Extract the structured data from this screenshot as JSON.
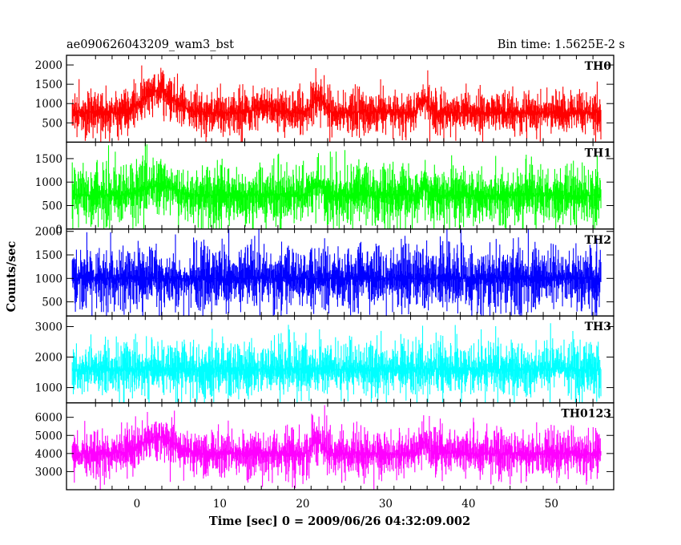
{
  "chart_data": {
    "type": "line",
    "title": "ae090626043209_wam3_bst",
    "subtitle": "Bin time: 1.5625E-2 s",
    "xlabel": "Time [sec] 0 = 2009/06/26 04:32:09.002",
    "ylabel": "Counts/sec",
    "xlim": [
      -8.5,
      57.5
    ],
    "x_ticks": [
      0,
      10,
      20,
      30,
      40,
      50
    ],
    "panels": [
      {
        "name": "TH0",
        "color": "#ff0000",
        "ylim": [
          0,
          2250
        ],
        "yticks": [
          500,
          1000,
          1500,
          2000
        ],
        "x_range": [
          -7.8,
          56
        ],
        "baseline": 770,
        "noise": 260,
        "bursts": [
          {
            "t": 2.5,
            "amp": 560,
            "w": 2.6
          },
          {
            "t": 15.5,
            "amp": 180,
            "w": 1.5
          },
          {
            "t": 21.8,
            "amp": 400,
            "w": 0.9
          },
          {
            "t": 34.6,
            "amp": 380,
            "w": 0.7
          }
        ]
      },
      {
        "name": "TH1",
        "color": "#00ff00",
        "ylim": [
          0,
          1850
        ],
        "yticks": [
          0,
          500,
          1000,
          1500
        ],
        "x_range": [
          -7.8,
          56
        ],
        "baseline": 720,
        "noise": 290,
        "bursts": [
          {
            "t": 2.5,
            "amp": 200,
            "w": 2.6
          },
          {
            "t": 21.8,
            "amp": 220,
            "w": 0.9
          },
          {
            "t": 34.6,
            "amp": 150,
            "w": 0.7
          }
        ]
      },
      {
        "name": "TH2",
        "color": "#0000ff",
        "ylim": [
          200,
          2050
        ],
        "yticks": [
          500,
          1000,
          1500,
          2000
        ],
        "x_range": [
          -7.8,
          56
        ],
        "baseline": 1000,
        "noise": 320,
        "bursts": []
      },
      {
        "name": "TH3",
        "color": "#00ffff",
        "ylim": [
          500,
          3350
        ],
        "yticks": [
          1000,
          2000,
          3000
        ],
        "x_range": [
          -7.8,
          56
        ],
        "baseline": 1600,
        "noise": 420,
        "bursts": []
      },
      {
        "name": "TH0123",
        "color": "#ff00ff",
        "ylim": [
          2000,
          6800
        ],
        "yticks": [
          3000,
          4000,
          5000,
          6000
        ],
        "x_range": [
          -7.8,
          56
        ],
        "baseline": 4000,
        "noise": 600,
        "bursts": [
          {
            "t": 2.5,
            "amp": 900,
            "w": 2.6
          },
          {
            "t": 21.8,
            "amp": 700,
            "w": 0.9
          },
          {
            "t": 34.6,
            "amp": 600,
            "w": 0.7
          }
        ]
      }
    ]
  }
}
